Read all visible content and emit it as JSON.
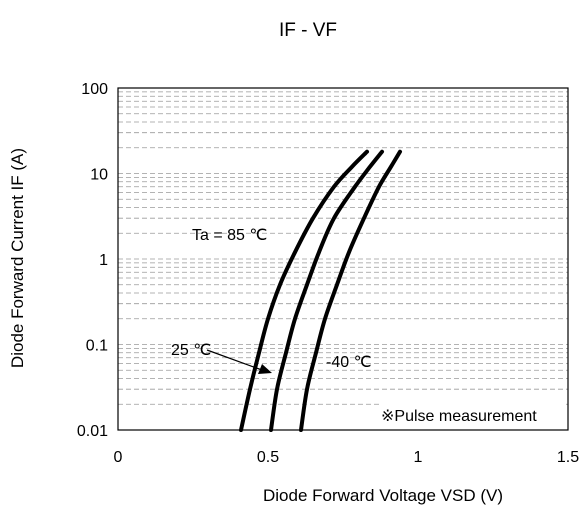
{
  "chart_data": {
    "type": "line",
    "title": "IF - VF",
    "xlabel": "Diode Forward Voltage VSD (V)",
    "ylabel": "Diode Forward Current IF (A)",
    "xlim": [
      0,
      1.5
    ],
    "ylim": [
      0.01,
      100
    ],
    "y_scale": "log",
    "x_ticks": [
      {
        "value": 0,
        "label": "0"
      },
      {
        "value": 0.5,
        "label": "0.5"
      },
      {
        "value": 1,
        "label": "1"
      },
      {
        "value": 1.5,
        "label": "1.5"
      }
    ],
    "y_ticks": [
      {
        "value": 0.01,
        "label": "0.01"
      },
      {
        "value": 0.1,
        "label": "0.1"
      },
      {
        "value": 1,
        "label": "1"
      },
      {
        "value": 10,
        "label": "10"
      },
      {
        "value": 100,
        "label": "100"
      }
    ],
    "grid": true,
    "series": [
      {
        "name": "Ta = 85 ℃",
        "x": [
          0.41,
          0.44,
          0.47,
          0.5,
          0.54,
          0.59,
          0.65,
          0.72,
          0.78,
          0.83
        ],
        "y": [
          0.01,
          0.03,
          0.08,
          0.2,
          0.5,
          1.2,
          3,
          7,
          12,
          18
        ]
      },
      {
        "name": "25 ℃",
        "x": [
          0.51,
          0.53,
          0.56,
          0.59,
          0.63,
          0.67,
          0.72,
          0.79,
          0.84,
          0.88
        ],
        "y": [
          0.01,
          0.03,
          0.08,
          0.2,
          0.5,
          1.2,
          3,
          7,
          12,
          18
        ]
      },
      {
        "name": "-40 ℃",
        "x": [
          0.61,
          0.63,
          0.66,
          0.69,
          0.73,
          0.77,
          0.82,
          0.87,
          0.91,
          0.94
        ],
        "y": [
          0.01,
          0.03,
          0.08,
          0.2,
          0.5,
          1.2,
          3,
          7,
          12,
          18
        ]
      }
    ],
    "annotation": "※Pulse measurement"
  }
}
